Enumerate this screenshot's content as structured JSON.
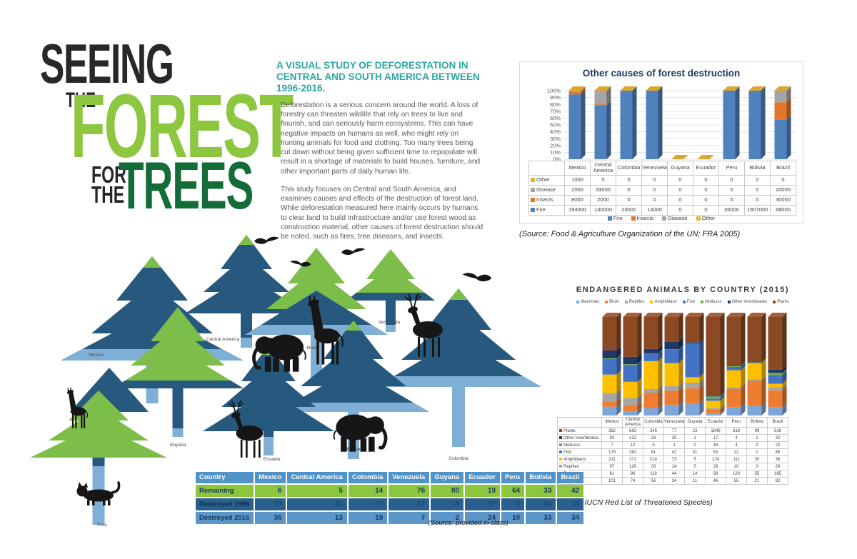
{
  "title": {
    "seeing": "SEEING",
    "the1": "THE",
    "forest": "FOREST",
    "for": "FOR",
    "the2": "THE",
    "trees": "TREES"
  },
  "intro": {
    "heading": "A VISUAL STUDY OF DEFORESTATION IN CENTRAL AND SOUTH AMERICA BETWEEN 1996-2016.",
    "paragraph1": "Deforestation is a serious concern around the world. A loss of forestry can threaten wildlife that rely on trees to live and flourish, and can seriously harm ecosystems. This can have negative impacts on humans as well, who might rely on hunting animals for food and clothing. Too many trees being cut down without being given sufficient time to repopulate will result in a shortage of materials to build houses, furniture, and other important parts of daily human life.",
    "paragraph2": "This study focuses on Central and South America, and examines causes and effects of the destruction of forest land. While deforestation measured here mainly occurs by humans to clear land to build infrastructure and/or use forest wood as construction material, other causes of forest destruction should be noted, such as fires, tree diseases, and insects."
  },
  "palette": {
    "light_green": "#8DC63F",
    "dark_green": "#146C38",
    "teal": "#2BA79F",
    "tree_blue": "#27597F",
    "tree_light_blue": "#7FAFD6",
    "tree_green": "#7DBE4A",
    "body_text": "#58595B",
    "chart_title_navy": "#1E3A60"
  },
  "chart_data": [
    {
      "type": "bar",
      "subtype": "stacked-100-3d",
      "title": "Other causes of forest destruction",
      "categories": [
        "Mexico",
        "Central America",
        "Colombia",
        "Venezuela",
        "Guyana",
        "Ecuador",
        "Peru",
        "Bolivia",
        "Brazil"
      ],
      "series": [
        {
          "name": "Fire",
          "color": "#4F81BD",
          "values": [
            194000,
            130000,
            23000,
            14000,
            0,
            0,
            35000,
            1907000,
            68000
          ]
        },
        {
          "name": "Insects",
          "color": "#E2762C",
          "values": [
            8000,
            2000,
            0,
            0,
            0,
            0,
            0,
            0,
            30000
          ]
        },
        {
          "name": "Disease",
          "color": "#A5A5A5",
          "values": [
            2000,
            33000,
            0,
            0,
            0,
            0,
            0,
            0,
            20000
          ]
        },
        {
          "name": "Other",
          "color": "#E5B43B",
          "values": [
            1000,
            0,
            0,
            0,
            0,
            0,
            0,
            0,
            0
          ]
        }
      ],
      "y_axis": {
        "min": "0%",
        "max": "100%",
        "step": "10%"
      },
      "legend_position": "bottom",
      "source": "(Source: Food & Agriculture Organization of the UN; FRA 2005)"
    },
    {
      "type": "bar",
      "subtype": "stacked-100-3d",
      "title": "ENDANGERED ANIMALS BY COUNTRY (2015)",
      "categories": [
        "Mexico",
        "Central America",
        "Colombia",
        "Venezuela",
        "Guyana",
        "Ecuador",
        "Peru",
        "Bolivia",
        "Brazil"
      ],
      "series": [
        {
          "name": "Mammals",
          "color": "#7EA6D8",
          "values": [
            101,
            74,
            56,
            34,
            11,
            46,
            55,
            21,
            82
          ]
        },
        {
          "name": "Birds",
          "color": "#ED7D31",
          "values": [
            61,
            96,
            119,
            44,
            14,
            98,
            120,
            55,
            165
          ]
        },
        {
          "name": "Reptiles",
          "color": "#A5A5A5",
          "values": [
            97,
            120,
            28,
            14,
            5,
            28,
            10,
            3,
            29
          ]
        },
        {
          "name": "Amphibians",
          "color": "#FFC000",
          "values": [
            211,
            271,
            214,
            73,
            5,
            174,
            111,
            35,
            36
          ]
        },
        {
          "name": "Fish",
          "color": "#4472C4",
          "values": [
            179,
            282,
            61,
            42,
            31,
            53,
            22,
            0,
            85
          ]
        },
        {
          "name": "Molluscs",
          "color": "#70AD47",
          "values": [
            7,
            12,
            0,
            1,
            0,
            48,
            4,
            2,
            22
          ]
        },
        {
          "name": "Other Invertibrates",
          "color": "#1F3864",
          "values": [
            93,
            123,
            33,
            25,
            1,
            17,
            4,
            1,
            32
          ]
        },
        {
          "name": "Plants",
          "color": "#8B4A24",
          "values": [
            382,
            663,
            245,
            77,
            23,
            1848,
            318,
            99,
            516
          ]
        }
      ],
      "legend_position": "top",
      "source": "(Source: IUCN Red List of Threatened Species)"
    }
  ],
  "deforestation_table": {
    "header": [
      "Country",
      "Mexico",
      "Central America",
      "Colombia",
      "Venezuela",
      "Guyana",
      "Ecuador",
      "Peru",
      "Bolivia",
      "Brazil"
    ],
    "rows": [
      {
        "label": "Remaining",
        "variant": "green",
        "values": [
          6,
          5,
          14,
          76,
          80,
          19,
          64,
          33,
          42
        ]
      },
      {
        "label": "Destroyed 1996",
        "variant": "dark",
        "values": [
          58,
          82,
          67,
          17,
          18,
          57,
          6,
          34,
          24
        ]
      },
      {
        "label": "Destroyed 2016",
        "variant": "mid",
        "values": [
          36,
          13,
          19,
          7,
          2,
          24,
          10,
          33,
          34
        ]
      }
    ],
    "source": "(Source: provided in class)"
  },
  "illustration": {
    "labels": [
      "Mexico",
      "Central America",
      "Brazil",
      "Venezuela",
      "Guyana",
      "Ecuador",
      "Peru",
      "Bolivia",
      "Colombia"
    ],
    "animals": [
      "giraffe",
      "giraffe",
      "elephant",
      "elephant",
      "deer",
      "deer",
      "cat",
      "bird",
      "bird",
      "bird",
      "bird"
    ]
  }
}
